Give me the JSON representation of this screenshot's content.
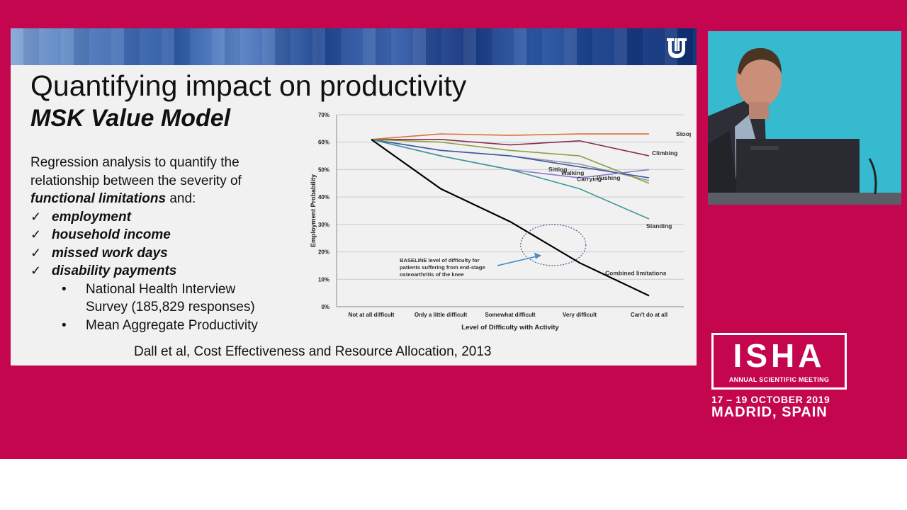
{
  "slide": {
    "title": "Quantifying impact on productivity",
    "subtitle": "MSK Value Model",
    "intro_lines": [
      "Regression analysis to quantify the",
      "relationship between the severity of"
    ],
    "intro_emphasis": "functional limitations",
    "intro_tail": " and:",
    "checklist": [
      "employment",
      "household income",
      "missed work days",
      "disability payments"
    ],
    "check_symbol": "✓",
    "bullets": [
      {
        "lines": [
          "National Health Interview",
          "Survey (185,829 responses)"
        ]
      },
      {
        "lines": [
          "Mean Aggregate Productivity"
        ]
      }
    ],
    "bullet_symbol": "•",
    "citation": "Dall et al, Cost Effectiveness and Resource Allocation, 2013"
  },
  "chart_data": {
    "type": "line",
    "xlabel": "Level of Difficulty with Activity",
    "ylabel": "Employment Probability",
    "categories": [
      "Not at all difficult",
      "Only a little difficult",
      "Somewhat difficult",
      "Very difficult",
      "Can't do at all"
    ],
    "yticks": [
      "0%",
      "10%",
      "20%",
      "30%",
      "40%",
      "50%",
      "60%",
      "70%"
    ],
    "ylim": [
      0,
      70
    ],
    "grid": true,
    "series": [
      {
        "name": "Stooping",
        "color": "#d9733a",
        "values": [
          61,
          63,
          62.5,
          63,
          63
        ]
      },
      {
        "name": "Climbing",
        "color": "#8a2a4a",
        "values": [
          61,
          61,
          59,
          60.5,
          55
        ]
      },
      {
        "name": "Sitting",
        "color": "#9a9a9a",
        "values": [
          61,
          57,
          55,
          52,
          46
        ]
      },
      {
        "name": "Pushing",
        "color": "#8aa040",
        "values": [
          61,
          60,
          57,
          55,
          45
        ]
      },
      {
        "name": "Walking",
        "color": "#3b5aa6",
        "values": [
          61,
          57,
          55,
          51,
          47
        ]
      },
      {
        "name": "Carrying",
        "color": "#8b7ac8",
        "values": [
          61,
          55,
          50,
          47,
          50
        ]
      },
      {
        "name": "Standing",
        "color": "#3c9a9a",
        "values": [
          61,
          55,
          50,
          43,
          32
        ]
      },
      {
        "name": "Combined limitations",
        "color": "#000000",
        "values": [
          61,
          43,
          31,
          16,
          4
        ]
      }
    ],
    "annotation": {
      "lines": [
        "BASELINE level of difficulty for",
        "patients suffering from end-stage",
        "osteoarthritis of the knee"
      ]
    }
  },
  "conference": {
    "name": "ISHA",
    "subtitle": "ANNUAL SCIENTIFIC MEETING",
    "dates": "17 – 19 OCTOBER 2019",
    "location": "MADRID, SPAIN"
  }
}
